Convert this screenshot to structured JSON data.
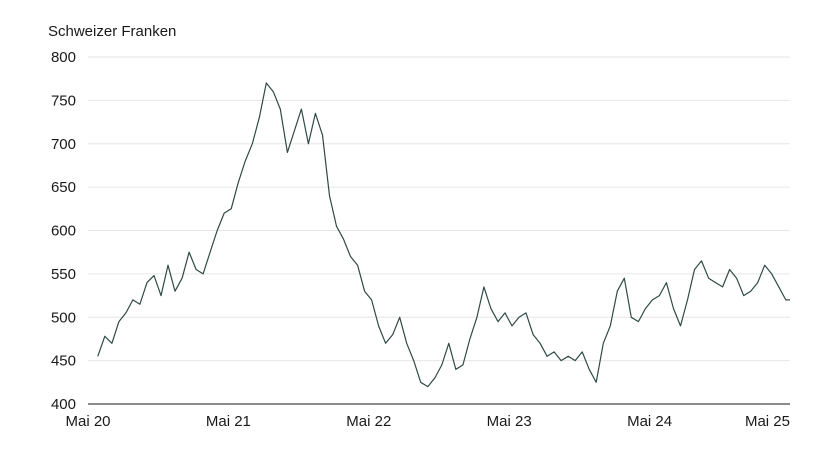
{
  "chart_data": {
    "type": "line",
    "title": "",
    "ylabel": "Schweizer Franken",
    "xlabel": "",
    "ylim": [
      400,
      800
    ],
    "yticks": [
      400,
      450,
      500,
      550,
      600,
      650,
      700,
      750,
      800
    ],
    "xticks": [
      "Mai 20",
      "Mai 21",
      "Mai 22",
      "Mai 23",
      "Mai 24",
      "Mai 25"
    ],
    "x_range_years": [
      2020.38,
      2025.38
    ],
    "grid": true,
    "line_color": "#2f4a45",
    "series": [
      {
        "x": [
          2020.45,
          2020.5,
          2020.55,
          2020.6,
          2020.65,
          2020.7,
          2020.75,
          2020.8,
          2020.85,
          2020.9,
          2020.95,
          2021.0,
          2021.05,
          2021.1,
          2021.15,
          2021.2,
          2021.25,
          2021.3,
          2021.35,
          2021.4,
          2021.45,
          2021.5,
          2021.55,
          2021.6,
          2021.65,
          2021.7,
          2021.75,
          2021.8,
          2021.85,
          2021.9,
          2021.95,
          2022.0,
          2022.05,
          2022.1,
          2022.15,
          2022.2,
          2022.25,
          2022.3,
          2022.35,
          2022.4,
          2022.45,
          2022.5,
          2022.55,
          2022.6,
          2022.65,
          2022.7,
          2022.75,
          2022.8,
          2022.85,
          2022.9,
          2022.95,
          2023.0,
          2023.05,
          2023.1,
          2023.15,
          2023.2,
          2023.25,
          2023.3,
          2023.35,
          2023.4,
          2023.45,
          2023.5,
          2023.55,
          2023.6,
          2023.65,
          2023.7,
          2023.75,
          2023.8,
          2023.85,
          2023.9,
          2023.95,
          2024.0,
          2024.05,
          2024.1,
          2024.15,
          2024.2,
          2024.25,
          2024.3,
          2024.35,
          2024.4,
          2024.45,
          2024.5,
          2024.55,
          2024.6,
          2024.65,
          2024.7,
          2024.75,
          2024.8,
          2024.85,
          2024.9,
          2024.95,
          2025.0,
          2025.05,
          2025.1,
          2025.15,
          2025.2,
          2025.25,
          2025.3,
          2025.35,
          2025.38
        ],
        "values": [
          455,
          478,
          470,
          495,
          505,
          520,
          515,
          540,
          548,
          525,
          560,
          530,
          545,
          575,
          555,
          550,
          575,
          600,
          620,
          625,
          655,
          680,
          700,
          730,
          770,
          760,
          740,
          690,
          715,
          740,
          700,
          735,
          710,
          640,
          605,
          590,
          570,
          560,
          530,
          520,
          490,
          470,
          480,
          500,
          470,
          450,
          425,
          420,
          430,
          445,
          470,
          440,
          445,
          475,
          500,
          535,
          510,
          495,
          505,
          490,
          500,
          505,
          480,
          470,
          455,
          460,
          450,
          455,
          450,
          460,
          440,
          425,
          470,
          490,
          530,
          545,
          500,
          495,
          510,
          520,
          525,
          540,
          510,
          490,
          520,
          555,
          565,
          545,
          540,
          535,
          555,
          545,
          525,
          530,
          540,
          560,
          550,
          535,
          520,
          520
        ]
      }
    ]
  }
}
